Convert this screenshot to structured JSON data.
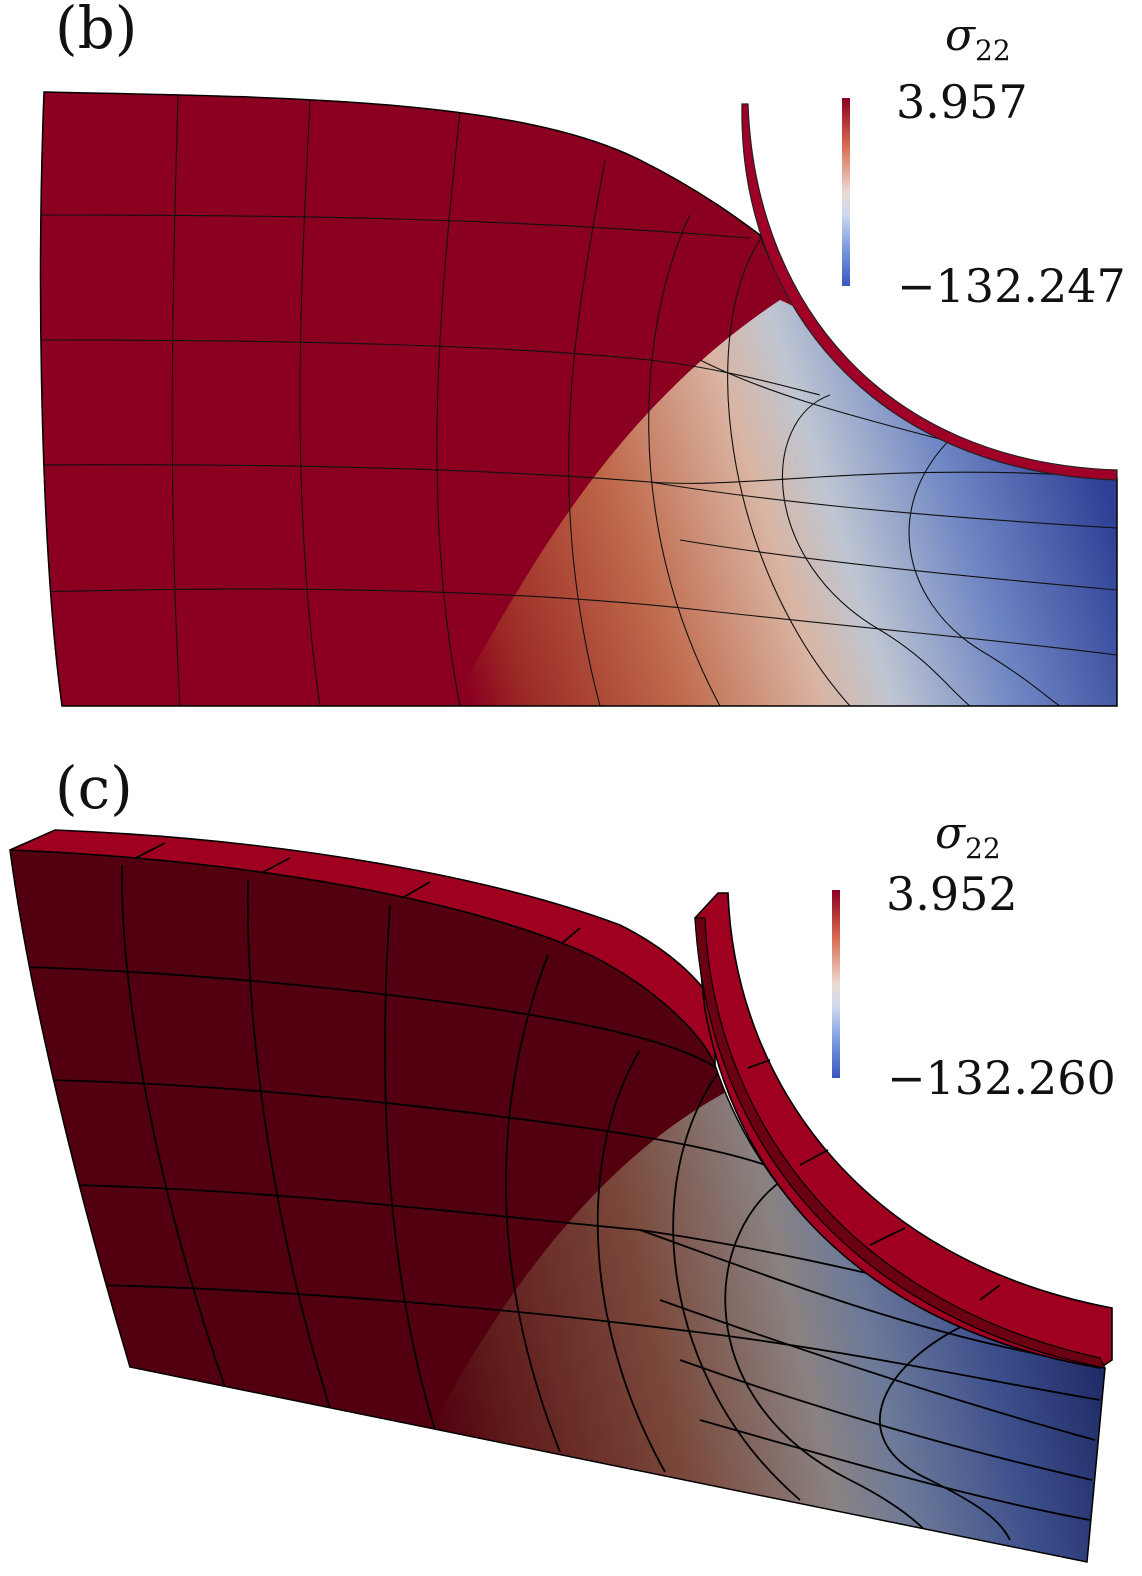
{
  "panels": [
    {
      "label": "(b)",
      "colorbar": {
        "symbol": "σ",
        "subscript": "22",
        "max": "3.957",
        "min": "−132.247"
      }
    },
    {
      "label": "(c)",
      "colorbar": {
        "symbol": "σ",
        "subscript": "22",
        "max": "3.952",
        "min": "−132.260"
      }
    }
  ],
  "colors": {
    "max": "#8b0020",
    "mid": "#dcdcdc",
    "min": "#3a4ea6",
    "dark_max": "#520010",
    "dark_min": "#1c2a5e"
  }
}
